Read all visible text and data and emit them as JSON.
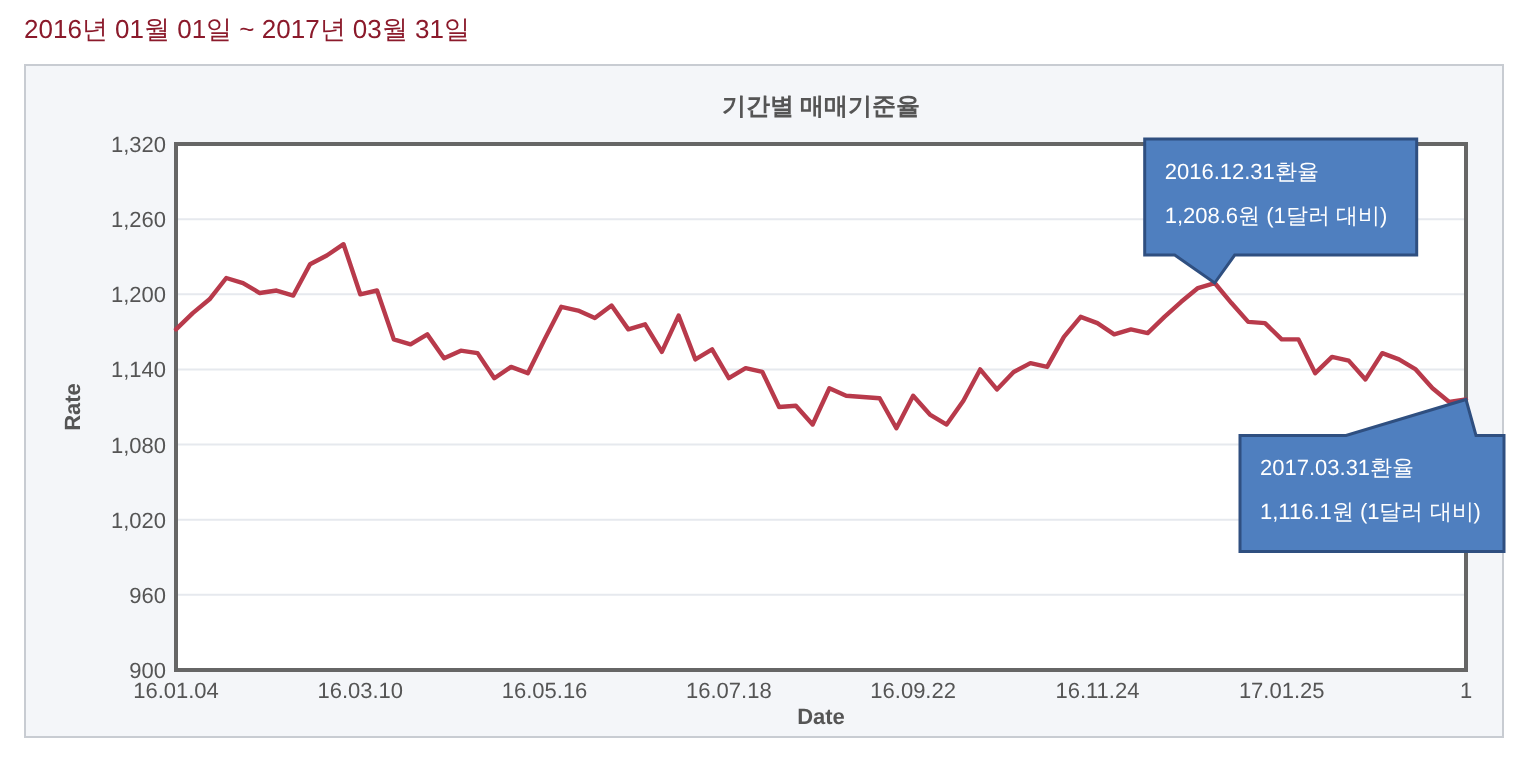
{
  "chart_data": {
    "type": "line",
    "title": "기간별 매매기준율",
    "subtitle": "2016년 01월 01일 ~ 2017년 03월 31일",
    "xlabel": "Date",
    "ylabel": "Rate",
    "categories": [
      "16.01.04",
      null,
      null,
      null,
      null,
      null,
      null,
      null,
      null,
      null,
      null,
      "16.03.10",
      null,
      null,
      null,
      null,
      null,
      null,
      null,
      null,
      null,
      null,
      "16.05.16",
      null,
      null,
      null,
      null,
      null,
      null,
      null,
      null,
      null,
      null,
      "16.07.18",
      null,
      null,
      null,
      null,
      null,
      null,
      null,
      null,
      null,
      null,
      "16.09.22",
      null,
      null,
      null,
      null,
      null,
      null,
      null,
      null,
      null,
      null,
      "16.11.24",
      null,
      null,
      null,
      null,
      null,
      null,
      null,
      null,
      null,
      null,
      "17.01.25",
      null,
      null,
      null,
      null,
      null,
      null,
      null,
      null,
      null,
      null,
      "1"
    ],
    "series": [
      {
        "color": "#b83a4b",
        "values": [
          1172,
          1185,
          1196,
          1213,
          1209,
          1201,
          1203,
          1199,
          1224,
          1231,
          1240,
          1200,
          1203,
          1164,
          1160,
          1168,
          1149,
          1155,
          1153,
          1133,
          1142,
          1137,
          1164,
          1190,
          1187,
          1181,
          1191,
          1172,
          1176,
          1154,
          1183,
          1148,
          1156,
          1133,
          1141,
          1138,
          1110,
          1111,
          1096,
          1125,
          1119,
          1118,
          1117,
          1093,
          1119,
          1104,
          1096,
          1115,
          1140,
          1124,
          1138,
          1145,
          1142,
          1166,
          1182,
          1177,
          1168,
          1172,
          1169,
          1182,
          1194,
          1205,
          1209,
          1193,
          1178,
          1177,
          1164,
          1164,
          1137,
          1150,
          1147,
          1132,
          1153,
          1148,
          1140,
          1125,
          1114,
          1116
        ]
      }
    ],
    "ylim": [
      900,
      1320
    ],
    "yticks": [
      {
        "value": 900,
        "label": "900"
      },
      {
        "value": 960,
        "label": "960"
      },
      {
        "value": 1020,
        "label": "1,020"
      },
      {
        "value": 1080,
        "label": "1,080"
      },
      {
        "value": 1140,
        "label": "1,140"
      },
      {
        "value": 1200,
        "label": "1,200"
      },
      {
        "value": 1260,
        "label": "1,260"
      },
      {
        "value": 1320,
        "label": "1,320"
      }
    ],
    "grid": "y",
    "marker": "none",
    "line_style": "solid",
    "annotations": [
      "2016.12.31환율\n1,208.6원 (1달러 대비)",
      "2017.03.31환율\n1,116.1원 (1달러 대비)"
    ]
  }
}
